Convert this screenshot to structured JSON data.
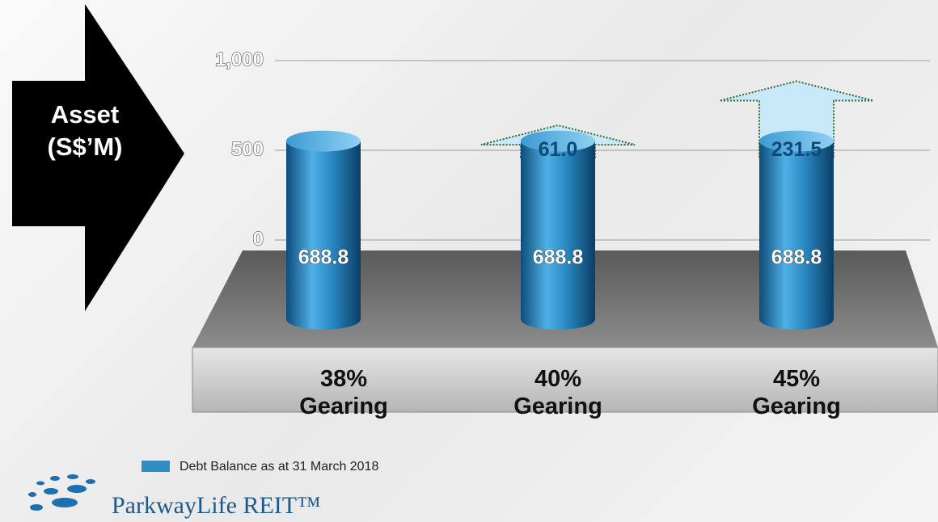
{
  "chart_data": {
    "type": "bar",
    "y_label": "Asset (S$’M)",
    "categories": [
      "38% Gearing",
      "40% Gearing",
      "45% Gearing"
    ],
    "series": [
      {
        "name": "Debt Balance as at 31 March 2018",
        "color": "#2f8fc4",
        "values": [
          688.8,
          688.8,
          688.8
        ]
      },
      {
        "color": "#c9e8fa",
        "values": [
          null,
          61,
          231.5
        ],
        "value_labels": [
          null,
          "61.0",
          "231.5"
        ]
      }
    ],
    "ylim": [
      0,
      1000
    ],
    "yticks": [
      0,
      500,
      {
        "value": 1000,
        "label": "1,000"
      }
    ],
    "grid": true
  },
  "logo": "ParkwayLife REIT™"
}
